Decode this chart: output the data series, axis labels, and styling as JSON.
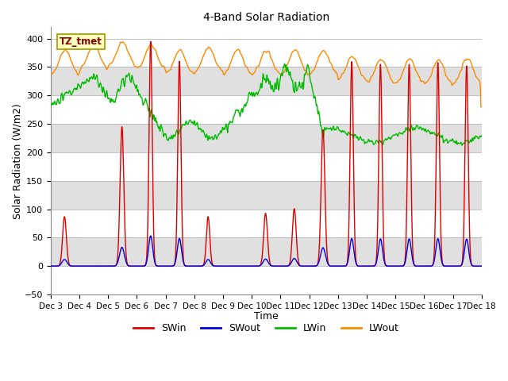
{
  "title": "4-Band Solar Radiation",
  "xlabel": "Time",
  "ylabel": "Solar Radiation (W/m2)",
  "annotation": "TZ_tmet",
  "xlim_days": [
    3,
    18
  ],
  "ylim": [
    -50,
    420
  ],
  "yticks": [
    -50,
    0,
    50,
    100,
    150,
    200,
    250,
    300,
    350,
    400
  ],
  "xtick_labels": [
    "Dec 3",
    "Dec 4",
    "Dec 5",
    "Dec 6",
    "Dec 7",
    "Dec 8",
    "Dec 9",
    "Dec 10",
    "Dec 11",
    "Dec 12",
    "Dec 13",
    "Dec 14",
    "Dec 15",
    "Dec 16",
    "Dec 17",
    "Dec 18"
  ],
  "colors": {
    "SWin": "#dd0000",
    "SWout": "#0000dd",
    "LWin": "#00bb00",
    "LWout": "#ff8800"
  },
  "bg_color": "#ffffff",
  "band_colors": [
    "#ffffff",
    "#e0e0e0"
  ],
  "linewidth": 1.0,
  "figsize": [
    6.4,
    4.8
  ],
  "dpi": 100
}
